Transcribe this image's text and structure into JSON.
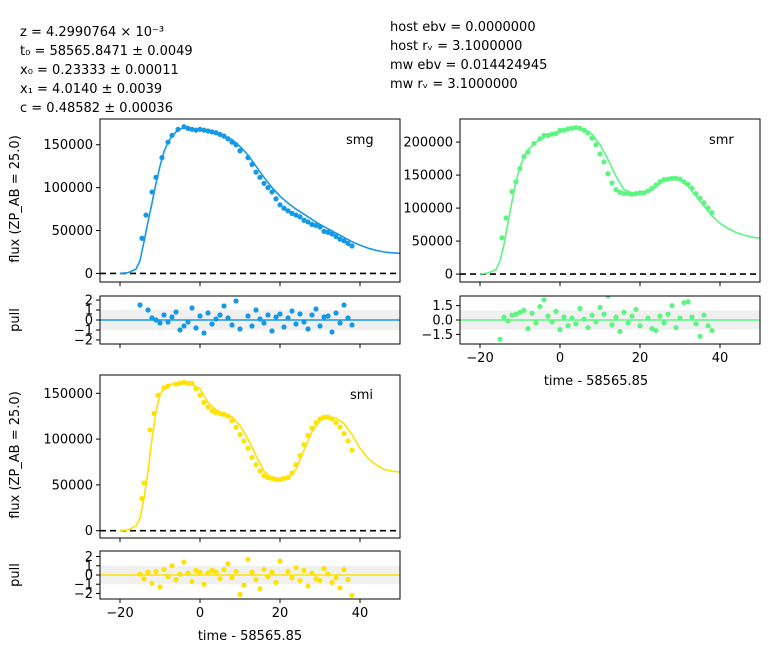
{
  "fit_params": [
    "z = 4.2990764 × 10⁻³",
    "t₀ = 58565.8471 ± 0.0049",
    "x₀ = 0.23333 ± 0.00011",
    "x₁ = 4.0140 ± 0.0039",
    "c = 0.48582 ± 0.00036"
  ],
  "fixed_params": [
    "host ebv = 0.0000000",
    "host rᵥ = 3.1000000",
    "mw ebv = 0.014424945",
    "mw rᵥ = 3.1000000"
  ],
  "labels": {
    "flux_ylabel": "flux (ZP_AB = 25.0)",
    "pull_ylabel": "pull",
    "time_xlabel": "time - 58565.85"
  },
  "chart_data": [
    {
      "type": "scatter",
      "band": "smg",
      "color": "#1599e6",
      "xlim": [
        -25,
        50
      ],
      "ylim": [
        -10000,
        180000
      ],
      "xticks": [
        -20,
        0,
        20,
        40
      ],
      "yticks": [
        0,
        50000,
        100000,
        150000
      ],
      "ytick_labels": [
        "0",
        "50000",
        "100000",
        "150000"
      ],
      "model": {
        "x": [
          -20,
          -18,
          -16,
          -15,
          -14,
          -13,
          -12,
          -11,
          -10,
          -9,
          -8,
          -7,
          -6,
          -5,
          -4,
          -3,
          -2,
          -1,
          0,
          2,
          4,
          6,
          8,
          10,
          12,
          14,
          16,
          18,
          20,
          22,
          24,
          26,
          28,
          30,
          32,
          34,
          36,
          38,
          40,
          42,
          44,
          46,
          48,
          50
        ],
        "y": [
          0,
          800,
          5000,
          15000,
          37000,
          60000,
          82000,
          105000,
          125000,
          142000,
          153000,
          160000,
          165000,
          168000,
          170000,
          169500,
          168500,
          167500,
          167000,
          165500,
          163000,
          160000,
          156000,
          148000,
          138000,
          125000,
          112000,
          100000,
          90000,
          82000,
          75000,
          69000,
          63000,
          57000,
          52000,
          47000,
          42000,
          37000,
          33000,
          29500,
          27000,
          25000,
          24000,
          23500
        ]
      },
      "points": {
        "x": [
          -14.5,
          -13.5,
          -12,
          -11,
          -9.5,
          -8,
          -7,
          -5.5,
          -4,
          -3,
          -2,
          -1,
          0,
          1,
          2,
          3,
          4,
          5,
          6,
          7,
          8,
          9,
          10,
          12,
          13,
          14,
          15,
          16,
          17,
          18,
          19,
          20,
          21,
          22,
          23,
          24,
          25,
          26,
          27,
          28,
          29,
          30,
          31,
          32,
          33,
          34,
          35,
          36,
          37,
          38
        ],
        "y": [
          41000,
          68000,
          95000,
          112000,
          135000,
          153000,
          161000,
          168000,
          171000,
          169000,
          168000,
          167000,
          168000,
          167000,
          166000,
          165000,
          164000,
          162000,
          160000,
          157000,
          153000,
          150000,
          143000,
          135000,
          127000,
          118000,
          112000,
          105000,
          100000,
          95000,
          87000,
          80000,
          76000,
          73000,
          70000,
          68000,
          66000,
          62000,
          60000,
          57000,
          56000,
          54000,
          49000,
          48000,
          46000,
          43000,
          40000,
          38000,
          35000,
          32000
        ]
      },
      "pulls": {
        "x": [
          -15,
          -13,
          -12,
          -11,
          -10,
          -9,
          -8,
          -7,
          -6,
          -5,
          -4,
          -3,
          -2,
          -1,
          0,
          1,
          2,
          3,
          4,
          5,
          6,
          7,
          8,
          9,
          10,
          12,
          13,
          14,
          15,
          16,
          17,
          18,
          19,
          20,
          21,
          22,
          23,
          24,
          25,
          26,
          27,
          28,
          29,
          30,
          31,
          32,
          33,
          34,
          35,
          36,
          37,
          38
        ],
        "y": [
          1.5,
          1.0,
          0.2,
          0.0,
          -0.3,
          0.5,
          -0.2,
          0.3,
          0.8,
          -1.0,
          -0.6,
          -0.2,
          1.2,
          -0.8,
          0.4,
          -1.3,
          0.7,
          -0.4,
          0.1,
          0.5,
          1.4,
          0.2,
          -0.5,
          1.9,
          -0.9,
          0.4,
          -0.6,
          1.0,
          0.1,
          -0.3,
          0.5,
          -1.1,
          0.3,
          0.6,
          -0.7,
          0.2,
          0.9,
          -0.4,
          0.6,
          -0.2,
          -0.9,
          0.5,
          1.1,
          -0.6,
          0.3,
          0.4,
          -1.2,
          0.7,
          -0.3,
          1.5,
          0.2,
          -0.5
        ]
      },
      "pull_ylim": [
        -2.4,
        2.4
      ],
      "pull_yticks": [
        -2,
        -1,
        0,
        1,
        2
      ]
    },
    {
      "type": "scatter",
      "band": "smr",
      "color": "#5cf582",
      "xlim": [
        -25,
        50
      ],
      "ylim": [
        -12000,
        235000
      ],
      "xticks": [
        -20,
        0,
        20,
        40
      ],
      "yticks": [
        0,
        50000,
        100000,
        150000,
        200000
      ],
      "ytick_labels": [
        "0",
        "50000",
        "100000",
        "150000",
        "200000"
      ],
      "model": {
        "x": [
          -20,
          -18,
          -16,
          -15,
          -14,
          -13,
          -12,
          -11,
          -10,
          -9,
          -8,
          -6,
          -4,
          -2,
          0,
          2,
          4,
          6,
          8,
          10,
          12,
          14,
          16,
          18,
          20,
          22,
          24,
          26,
          28,
          30,
          32,
          34,
          36,
          38,
          40,
          42,
          44,
          46,
          48,
          50
        ],
        "y": [
          0,
          1500,
          7000,
          20000,
          45000,
          78000,
          110000,
          140000,
          162000,
          178000,
          188000,
          200000,
          207000,
          211000,
          215000,
          219000,
          222000,
          220000,
          212000,
          196000,
          174000,
          148000,
          128000,
          123000,
          123000,
          124000,
          132000,
          142000,
          145000,
          142000,
          133000,
          118000,
          103000,
          88000,
          77000,
          69000,
          63000,
          59000,
          56000,
          54000
        ]
      },
      "points": {
        "x": [
          -14.5,
          -13.5,
          -12,
          -11,
          -10,
          -9,
          -8,
          -6.5,
          -5,
          -4,
          -3,
          -2,
          -1,
          0,
          1,
          2,
          3,
          4,
          5,
          6,
          7,
          8,
          9,
          10,
          11,
          12,
          13,
          14,
          15,
          16,
          17,
          18,
          19,
          20,
          21,
          22,
          23,
          24,
          25,
          26,
          27,
          28,
          29,
          30,
          31,
          32,
          33,
          34,
          35,
          36,
          37,
          38
        ],
        "y": [
          55000,
          85000,
          125000,
          140000,
          160000,
          178000,
          185000,
          198000,
          205000,
          210000,
          210000,
          212000,
          213000,
          218000,
          218000,
          220000,
          221000,
          222000,
          221000,
          218000,
          214000,
          206000,
          196000,
          182000,
          170000,
          152000,
          138000,
          128000,
          124000,
          122000,
          122000,
          121000,
          122000,
          123000,
          123000,
          126000,
          130000,
          135000,
          140000,
          143000,
          144000,
          145000,
          145000,
          144000,
          140000,
          136000,
          130000,
          122000,
          115000,
          108000,
          100000,
          93000
        ]
      },
      "pulls": {
        "x": [
          -15,
          -14,
          -13,
          -12,
          -11,
          -10,
          -9,
          -8,
          -7,
          -6,
          -5,
          -4,
          -3,
          -2,
          -1,
          0,
          1,
          2,
          3,
          4,
          5,
          6,
          7,
          8,
          9,
          10,
          11,
          12,
          13,
          14,
          15,
          16,
          17,
          18,
          19,
          20,
          22,
          23,
          24,
          25,
          26,
          27,
          28,
          29,
          30,
          31,
          32,
          33,
          34,
          35,
          36,
          37,
          38
        ],
        "y": [
          -2.0,
          0.3,
          -0.1,
          0.5,
          0.6,
          0.8,
          1.0,
          -0.9,
          0.7,
          -0.3,
          1.4,
          2.1,
          0.4,
          -0.2,
          0.9,
          -1.0,
          0.3,
          -0.6,
          0.2,
          -0.4,
          1.2,
          0.1,
          -0.8,
          0.5,
          -0.2,
          1.3,
          0.6,
          2.5,
          -0.5,
          0.3,
          -1.2,
          0.8,
          -0.3,
          0.4,
          1.1,
          -0.6,
          0.2,
          -0.9,
          -1.1,
          0.4,
          -0.3,
          0.6,
          1.5,
          -0.8,
          0.2,
          1.8,
          1.9,
          0.3,
          -0.4,
          -1.7,
          0.5,
          -0.6,
          -1.1
        ]
      },
      "pull_ylim": [
        -2.5,
        2.5
      ],
      "pull_yticks": [
        -1.5,
        0.0,
        1.5
      ],
      "pull_ytick_labels": [
        "−1.5",
        "0.0",
        "1.5"
      ]
    },
    {
      "type": "scatter",
      "band": "smi",
      "color": "#fce205",
      "xlim": [
        -25,
        50
      ],
      "ylim": [
        -8000,
        170000
      ],
      "xticks": [
        -20,
        0,
        20,
        40
      ],
      "yticks": [
        0,
        50000,
        100000,
        150000
      ],
      "ytick_labels": [
        "0",
        "50000",
        "100000",
        "150000"
      ],
      "model": {
        "x": [
          -20,
          -18,
          -16,
          -15,
          -14,
          -13,
          -12,
          -11,
          -10,
          -9,
          -8,
          -6,
          -4,
          -2,
          0,
          2,
          4,
          6,
          8,
          10,
          12,
          14,
          16,
          18,
          20,
          22,
          24,
          26,
          28,
          30,
          32,
          34,
          36,
          38,
          40,
          42,
          44,
          46,
          48,
          50
        ],
        "y": [
          0,
          800,
          5000,
          14000,
          35000,
          65000,
          100000,
          130000,
          148000,
          156000,
          159000,
          161000,
          162000,
          160000,
          155000,
          140000,
          132000,
          128000,
          124000,
          115000,
          100000,
          82000,
          65000,
          57000,
          56000,
          57000,
          67000,
          88000,
          108000,
          120000,
          124000,
          123000,
          117000,
          105000,
          90000,
          79000,
          72000,
          67000,
          65000,
          64000
        ]
      },
      "points": {
        "x": [
          -14.5,
          -14,
          -12.5,
          -11.5,
          -10.5,
          -9,
          -8,
          -6,
          -5,
          -4,
          -3,
          -2,
          -1,
          0,
          1,
          2,
          3,
          4,
          5,
          6,
          7,
          8,
          9,
          10,
          11,
          12,
          13,
          14,
          15,
          16,
          17,
          18,
          19,
          20,
          21,
          22,
          23,
          24,
          25,
          26,
          27,
          28,
          29,
          30,
          31,
          32,
          33,
          34,
          35,
          36,
          37,
          38
        ],
        "y": [
          35000,
          52000,
          110000,
          128000,
          148000,
          156000,
          158000,
          160000,
          161000,
          162000,
          161000,
          161000,
          155000,
          148000,
          140000,
          135000,
          131000,
          129000,
          128000,
          127000,
          125000,
          120000,
          113000,
          105000,
          98000,
          90000,
          80000,
          72000,
          65000,
          60000,
          58000,
          57000,
          56000,
          56000,
          57000,
          58000,
          63000,
          72000,
          82000,
          94000,
          104000,
          112000,
          118000,
          122000,
          124000,
          124000,
          122000,
          118000,
          113000,
          106000,
          98000,
          88000
        ]
      },
      "pulls": {
        "x": [
          -15,
          -14,
          -13,
          -12,
          -11,
          -10,
          -9,
          -8,
          -7,
          -6,
          -5,
          -4,
          -3,
          -2,
          -1,
          0,
          1,
          2,
          3,
          4,
          5,
          6,
          7,
          8,
          9,
          10,
          11,
          12,
          13,
          14,
          15,
          16,
          17,
          18,
          19,
          20,
          22,
          23,
          24,
          25,
          26,
          27,
          28,
          29,
          30,
          31,
          32,
          33,
          34,
          35,
          36,
          37,
          38
        ],
        "y": [
          0.1,
          -0.4,
          0.3,
          -0.9,
          0.4,
          -1.3,
          0.6,
          -0.2,
          1.0,
          -0.5,
          0.1,
          1.4,
          0.2,
          -0.7,
          0.5,
          0.3,
          -1.0,
          0.2,
          0.5,
          0.3,
          -0.4,
          0.6,
          1.2,
          -0.3,
          0.4,
          -2.1,
          -1.1,
          1.7,
          0.3,
          -0.5,
          -1.5,
          0.6,
          -0.2,
          0.3,
          -0.8,
          1.5,
          0.4,
          -0.3,
          0.8,
          -0.6,
          0.5,
          -1.2,
          0.2,
          -0.4,
          -0.6,
          0.7,
          0.1,
          -0.8,
          -0.3,
          -1.4,
          0.6,
          -0.5,
          -2.2
        ]
      },
      "pull_ylim": [
        -2.6,
        2.6
      ],
      "pull_yticks": [
        -2,
        -1,
        0,
        1,
        2
      ]
    }
  ]
}
